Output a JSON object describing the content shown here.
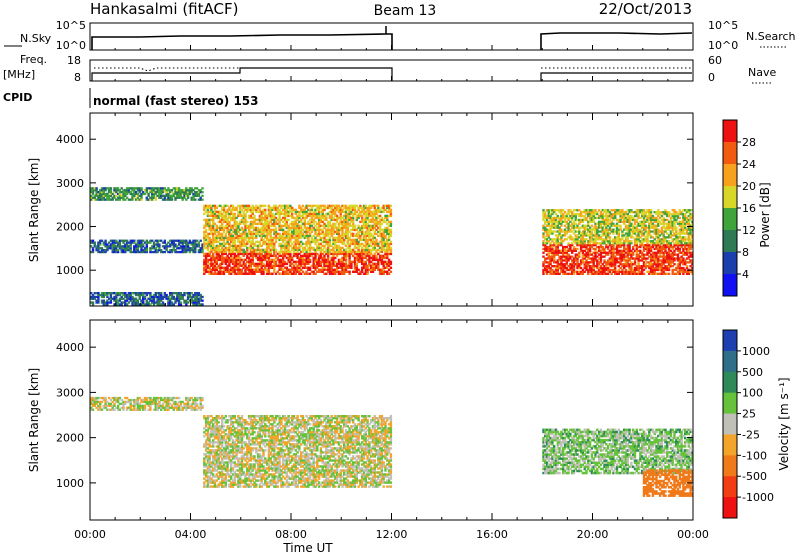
{
  "header": {
    "station": "Hankasalmi (fitACF)",
    "beam": "Beam 13",
    "date": "22/Oct/2013"
  },
  "top_panels": {
    "nsky_label": "N.Sky",
    "nsky_ticks": [
      "10^5",
      "10^0"
    ],
    "nsearch_label": "N.Search",
    "nsearch_ticks": [
      "10^5",
      "10^0"
    ],
    "freq_label_1": "Freq.",
    "freq_label_2": "[MHz]",
    "freq_ticks": [
      "18",
      "8"
    ],
    "nave_label": "Nave",
    "nave_ticks": [
      "60",
      "0"
    ],
    "cpid_label": "CPID",
    "cpid_text": "normal (fast stereo) 153"
  },
  "axes": {
    "y_label": "Slant Range [km]",
    "y_ticks": [
      "4000",
      "3000",
      "2000",
      "1000"
    ],
    "x_label": "Time UT",
    "x_ticks": [
      "00:00",
      "04:00",
      "08:00",
      "12:00",
      "16:00",
      "20:00",
      "00:00"
    ]
  },
  "power_scale": {
    "label": "Power [dB]",
    "ticks": [
      "28",
      "24",
      "20",
      "16",
      "12",
      "8",
      "4"
    ],
    "colors": [
      "#ee1111",
      "#f25a10",
      "#f7a11c",
      "#d9d62a",
      "#3fa43a",
      "#2e7a55",
      "#1c3fae",
      "#1010f0"
    ]
  },
  "velocity_scale": {
    "label": "Velocity [m s⁻¹]",
    "ticks": [
      "1000",
      "500",
      "100",
      "25",
      "-25",
      "-100",
      "-500",
      "-1000"
    ],
    "colors": [
      "#1e3fb0",
      "#2f6f8a",
      "#2f8a5a",
      "#66c23a",
      "#c0c0b8",
      "#f2a52a",
      "#f07a1a",
      "#f23d12",
      "#ee1111"
    ]
  },
  "chart_data": [
    {
      "type": "heatmap",
      "title": "Power",
      "xlabel": "Time UT",
      "ylabel": "Slant Range [km]",
      "xlim": [
        "00:00",
        "24:00"
      ],
      "ylim": [
        180,
        4600
      ],
      "colorbar": {
        "label": "Power [dB]",
        "ticks": [
          28,
          24,
          20,
          16,
          12,
          8,
          4
        ]
      },
      "data_gaps_hours": [
        [
          12,
          18
        ]
      ],
      "regions": [
        {
          "hours": [
            0,
            4.5
          ],
          "range_km": [
            2600,
            2900
          ],
          "value_db": 12
        },
        {
          "hours": [
            0,
            4.5
          ],
          "range_km": [
            1400,
            1700
          ],
          "value_db": 8
        },
        {
          "hours": [
            0,
            4.5
          ],
          "range_km": [
            200,
            500
          ],
          "value_db": 8
        },
        {
          "hours": [
            4.5,
            12
          ],
          "range_km": [
            900,
            1400
          ],
          "value_db": 28
        },
        {
          "hours": [
            4.5,
            12
          ],
          "range_km": [
            1400,
            2500
          ],
          "value_db": 20
        },
        {
          "hours": [
            18,
            24
          ],
          "range_km": [
            900,
            1600
          ],
          "value_db": 28
        },
        {
          "hours": [
            18,
            24
          ],
          "range_km": [
            1600,
            2400
          ],
          "value_db": 18
        }
      ]
    },
    {
      "type": "heatmap",
      "title": "Velocity",
      "xlabel": "Time UT",
      "ylabel": "Slant Range [km]",
      "xlim": [
        "00:00",
        "24:00"
      ],
      "ylim": [
        180,
        4600
      ],
      "colorbar": {
        "label": "Velocity [m s⁻¹]",
        "ticks": [
          1000,
          500,
          100,
          25,
          -25,
          -100,
          -500,
          -1000
        ]
      },
      "data_gaps_hours": [
        [
          12,
          18
        ]
      ],
      "regions": [
        {
          "hours": [
            0,
            4.5
          ],
          "range_km": [
            2600,
            2900
          ],
          "value_ms": 0
        },
        {
          "hours": [
            4.5,
            12
          ],
          "range_km": [
            900,
            2500
          ],
          "value_ms": 0
        },
        {
          "hours": [
            18,
            24
          ],
          "range_km": [
            1200,
            2200
          ],
          "value_ms": 50
        },
        {
          "hours": [
            22,
            24
          ],
          "range_km": [
            700,
            1300
          ],
          "value_ms": -300
        }
      ]
    }
  ]
}
